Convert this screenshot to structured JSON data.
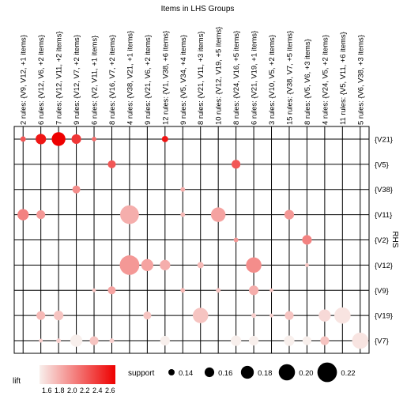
{
  "chart_data": {
    "type": "grouped-matrix-bubble",
    "title": "Items in LHS Groups",
    "ylabel": "RHS",
    "columns": [
      "2 rules: {V9, V12, +1 items}",
      "6 rules: {V12, V6, +2 items}",
      "7 rules: {V12, V11, +2 items}",
      "9 rules: {V12, V7, +2 items}",
      "6 rules: {V2, V11, +1 items}",
      "8 rules: {V16, V7, +2 items}",
      "4 rules: {V38, V21, +1 items}",
      "9 rules: {V21, V6, +2 items}",
      "12 rules: {V1, V38, +6 items}",
      "9 rules: {V5, V34, +4 items}",
      "8 rules: {V21, V11, +3 items}",
      "10 rules: {V12, V19, +5 items}",
      "8 rules: {V24, V16, +5 items}",
      "6 rules: {V21, V19, +1 items}",
      "3 rules: {V10, V5, +2 items}",
      "15 rules: {V38, V7, +5 items}",
      "8 rules: {V5, V6, +3 items}",
      "4 rules: {V24, V5, +2 items}",
      "11 rules: {V5, V11, +6 items}",
      "5 rules: {V6, V38, +3 items}"
    ],
    "rows": [
      "{V21}",
      "{V5}",
      "{V38}",
      "{V11}",
      "{V2}",
      "{V12}",
      "{V9}",
      "{V19}",
      "{V7}"
    ],
    "points": [
      {
        "col": 0,
        "row": 0,
        "support": 0.135,
        "lift": 2.3
      },
      {
        "col": 1,
        "row": 0,
        "support": 0.165,
        "lift": 2.6
      },
      {
        "col": 2,
        "row": 0,
        "support": 0.185,
        "lift": 2.7
      },
      {
        "col": 3,
        "row": 0,
        "support": 0.16,
        "lift": 2.45
      },
      {
        "col": 4,
        "row": 0,
        "support": 0.13,
        "lift": 2.2
      },
      {
        "col": 8,
        "row": 0,
        "support": 0.14,
        "lift": 2.6
      },
      {
        "col": 5,
        "row": 1,
        "support": 0.15,
        "lift": 2.3
      },
      {
        "col": 12,
        "row": 1,
        "support": 0.155,
        "lift": 2.3
      },
      {
        "col": 3,
        "row": 2,
        "support": 0.15,
        "lift": 2.05
      },
      {
        "col": 9,
        "row": 2,
        "support": 0.13,
        "lift": 1.9
      },
      {
        "col": 0,
        "row": 3,
        "support": 0.17,
        "lift": 2.1
      },
      {
        "col": 1,
        "row": 3,
        "support": 0.155,
        "lift": 2.0
      },
      {
        "col": 6,
        "row": 3,
        "support": 0.215,
        "lift": 1.9
      },
      {
        "col": 9,
        "row": 3,
        "support": 0.13,
        "lift": 1.85
      },
      {
        "col": 11,
        "row": 3,
        "support": 0.19,
        "lift": 1.95
      },
      {
        "col": 15,
        "row": 3,
        "support": 0.16,
        "lift": 2.0
      },
      {
        "col": 12,
        "row": 4,
        "support": 0.13,
        "lift": 2.0
      },
      {
        "col": 16,
        "row": 4,
        "support": 0.16,
        "lift": 2.1
      },
      {
        "col": 6,
        "row": 5,
        "support": 0.22,
        "lift": 2.0
      },
      {
        "col": 7,
        "row": 5,
        "support": 0.175,
        "lift": 1.95
      },
      {
        "col": 8,
        "row": 5,
        "support": 0.165,
        "lift": 1.9
      },
      {
        "col": 10,
        "row": 5,
        "support": 0.14,
        "lift": 1.85
      },
      {
        "col": 13,
        "row": 5,
        "support": 0.195,
        "lift": 2.05
      },
      {
        "col": 16,
        "row": 5,
        "support": 0.125,
        "lift": 1.8
      },
      {
        "col": 4,
        "row": 6,
        "support": 0.125,
        "lift": 1.8
      },
      {
        "col": 5,
        "row": 6,
        "support": 0.15,
        "lift": 1.95
      },
      {
        "col": 9,
        "row": 6,
        "support": 0.13,
        "lift": 1.85
      },
      {
        "col": 11,
        "row": 6,
        "support": 0.13,
        "lift": 1.8
      },
      {
        "col": 13,
        "row": 6,
        "support": 0.16,
        "lift": 1.9
      },
      {
        "col": 14,
        "row": 6,
        "support": 0.125,
        "lift": 1.8
      },
      {
        "col": 1,
        "row": 7,
        "support": 0.155,
        "lift": 1.85
      },
      {
        "col": 2,
        "row": 7,
        "support": 0.16,
        "lift": 1.8
      },
      {
        "col": 7,
        "row": 7,
        "support": 0.15,
        "lift": 1.8
      },
      {
        "col": 10,
        "row": 7,
        "support": 0.195,
        "lift": 1.8
      },
      {
        "col": 13,
        "row": 7,
        "support": 0.13,
        "lift": 1.75
      },
      {
        "col": 14,
        "row": 7,
        "support": 0.125,
        "lift": 1.75
      },
      {
        "col": 15,
        "row": 7,
        "support": 0.155,
        "lift": 1.8
      },
      {
        "col": 17,
        "row": 7,
        "support": 0.175,
        "lift": 1.7
      },
      {
        "col": 18,
        "row": 7,
        "support": 0.2,
        "lift": 1.65
      },
      {
        "col": 1,
        "row": 8,
        "support": 0.125,
        "lift": 1.75
      },
      {
        "col": 2,
        "row": 8,
        "support": 0.13,
        "lift": 1.75
      },
      {
        "col": 3,
        "row": 8,
        "support": 0.175,
        "lift": 1.6
      },
      {
        "col": 4,
        "row": 8,
        "support": 0.155,
        "lift": 1.8
      },
      {
        "col": 5,
        "row": 8,
        "support": 0.13,
        "lift": 1.75
      },
      {
        "col": 8,
        "row": 8,
        "support": 0.16,
        "lift": 1.55
      },
      {
        "col": 12,
        "row": 8,
        "support": 0.165,
        "lift": 1.55
      },
      {
        "col": 13,
        "row": 8,
        "support": 0.16,
        "lift": 1.6
      },
      {
        "col": 15,
        "row": 8,
        "support": 0.165,
        "lift": 1.6
      },
      {
        "col": 16,
        "row": 8,
        "support": 0.155,
        "lift": 1.55
      },
      {
        "col": 17,
        "row": 8,
        "support": 0.155,
        "lift": 1.8
      },
      {
        "col": 19,
        "row": 8,
        "support": 0.2,
        "lift": 1.65
      }
    ],
    "legend": {
      "lift_label": "lift",
      "lift_ticks": [
        "1.6",
        "1.8",
        "2.0",
        "2.2",
        "2.4",
        "2.6"
      ],
      "lift_range": [
        1.6,
        2.7
      ],
      "support_label": "support",
      "support_ticks": [
        0.14,
        0.16,
        0.18,
        0.2,
        0.22
      ],
      "support_tick_labels": [
        "0.14",
        "0.16",
        "0.18",
        "0.20",
        "0.22"
      ]
    },
    "colors": {
      "low": "#f8efec",
      "high": "#ee0000",
      "grid": "#000000"
    }
  }
}
